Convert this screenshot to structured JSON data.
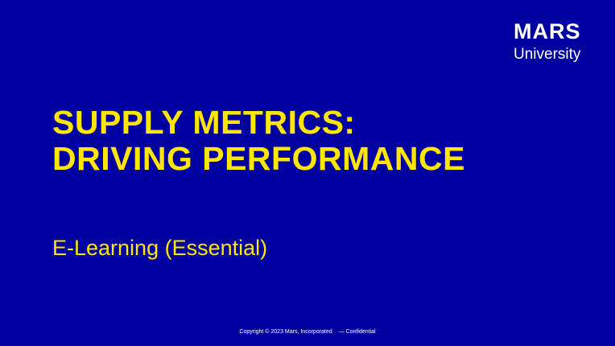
{
  "logo": {
    "brand": "MARS",
    "subtitle": "University"
  },
  "slide": {
    "title_line1": "SUPPLY METRICS:",
    "title_line2": "DRIVING PERFORMANCE",
    "subtitle": "E-Learning (Essential)"
  },
  "footer": {
    "copyright": "Copyright © 2023 Mars, Incorporated",
    "confidential": "— Confidential"
  },
  "colors": {
    "background": "#0000A0",
    "accent": "#FFE600",
    "logo_text": "#FFFFFF"
  }
}
